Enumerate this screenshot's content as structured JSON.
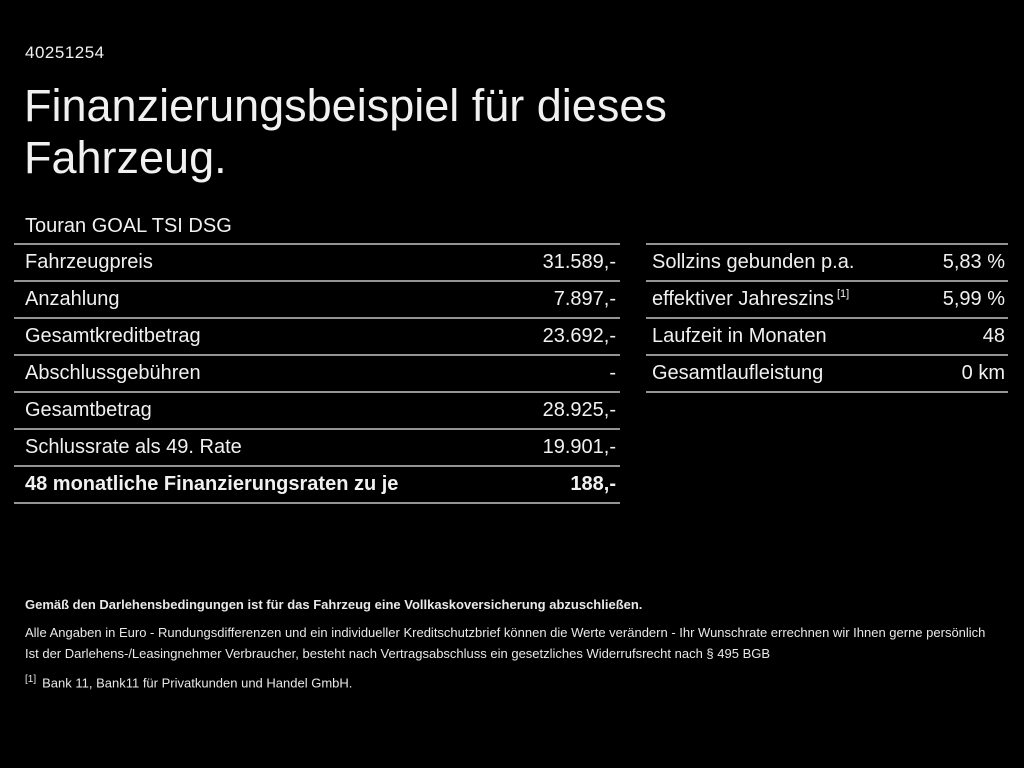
{
  "header": {
    "offer_id": "40251254",
    "title": "Finanzierungsbeispiel für dieses Fahrzeug."
  },
  "vehicle": {
    "model": "Touran GOAL TSI DSG"
  },
  "financing_table": {
    "rows": [
      {
        "label": "Fahrzeugpreis",
        "value": "31.589,-"
      },
      {
        "label": "Anzahlung",
        "value": "7.897,-"
      },
      {
        "label": "Gesamtkreditbetrag",
        "value": "23.692,-"
      },
      {
        "label": "Abschlussgebühren",
        "value": "-"
      },
      {
        "label": "Gesamtbetrag",
        "value": "28.925,-"
      },
      {
        "label": "Schlussrate als 49. Rate",
        "value": "19.901,-"
      },
      {
        "label": "48 monatliche Finanzierungsraten zu je",
        "value": "188,-"
      }
    ]
  },
  "conditions_table": {
    "rows": [
      {
        "label": "Sollzins gebunden p.a.",
        "sup": "",
        "value": "5,83 %"
      },
      {
        "label": "effektiver Jahreszins",
        "sup": "[1]",
        "value": "5,99 %"
      },
      {
        "label": "Laufzeit in Monaten",
        "sup": "",
        "value": "48"
      },
      {
        "label": "Gesamtlaufleistung",
        "sup": "",
        "value": "0 km"
      }
    ]
  },
  "footer": {
    "insurance_note": "Gemäß den Darlehensbedingungen ist für das Fahrzeug eine Vollkaskoversicherung abzuschließen.",
    "disclaimer_1": "Alle Angaben in Euro - Rundungsdifferenzen und ein individueller Kreditschutzbrief können die Werte verändern - Ihr Wunschrate errechnen wir Ihnen gerne persönlich",
    "disclaimer_2": "Ist der Darlehens-/Leasingnehmer Verbraucher, besteht nach Vertragsabschluss ein gesetzliches Widerrufsrecht nach § 495 BGB",
    "footnote_marker": "[1]",
    "footnote_text": "Bank 11, Bank11 für Privatkunden und Handel GmbH."
  },
  "colors": {
    "background": "#000000",
    "text": "#f1f1f1",
    "divider": "#949494"
  }
}
